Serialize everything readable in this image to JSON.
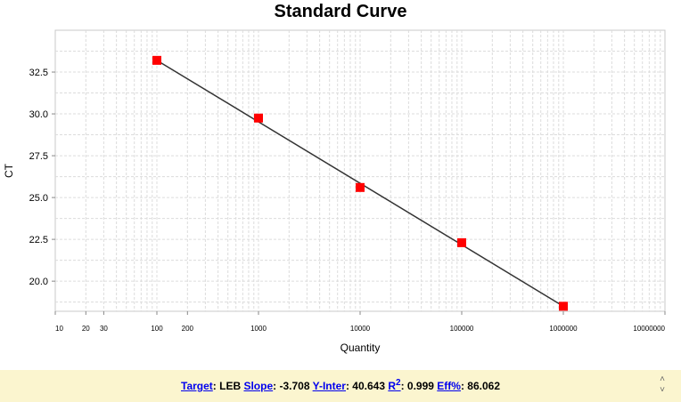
{
  "chart_data": {
    "type": "scatter",
    "title": "Standard Curve",
    "xlabel": "Quantity",
    "ylabel": "CT",
    "x_scale": "log",
    "xlim": [
      10,
      10000000
    ],
    "ylim": [
      18.2,
      35
    ],
    "x_tick_labels": [
      "10",
      "20",
      "30",
      "100",
      "200",
      "1000",
      "10000",
      "100000",
      "1000000",
      "10000000"
    ],
    "x_tick_values": [
      10,
      20,
      30,
      100,
      200,
      1000,
      10000,
      100000,
      1000000,
      10000000
    ],
    "y_tick_labels": [
      "20.0",
      "22.5",
      "25.0",
      "27.5",
      "30.0",
      "32.5"
    ],
    "y_tick_values": [
      20.0,
      22.5,
      25.0,
      27.5,
      30.0,
      32.5
    ],
    "grid": true,
    "series": [
      {
        "x": [
          100,
          1000,
          10000,
          100000,
          1000000
        ],
        "y": [
          33.2,
          29.75,
          25.6,
          22.3,
          18.5
        ],
        "marker": "square",
        "color": "#ff0000"
      }
    ],
    "fit_line": {
      "x": [
        100,
        1000000
      ],
      "y": [
        33.2,
        18.5
      ],
      "color": "#333333"
    }
  },
  "stats": {
    "target_label": "Target",
    "target_value": ": LEB ",
    "slope_label": "Slope",
    "slope_value": ": -3.708 ",
    "yinter_label": "Y-Inter",
    "yinter_value": ": 40.643 ",
    "r2_label": "R",
    "r2_sup": "2",
    "r2_value": ": 0.999 ",
    "eff_label": "Eff%",
    "eff_value": ": 86.062"
  },
  "colors": {
    "stats_bar_bg": "#fbf5cf",
    "link": "#0000ee",
    "marker": "#ff0000"
  }
}
